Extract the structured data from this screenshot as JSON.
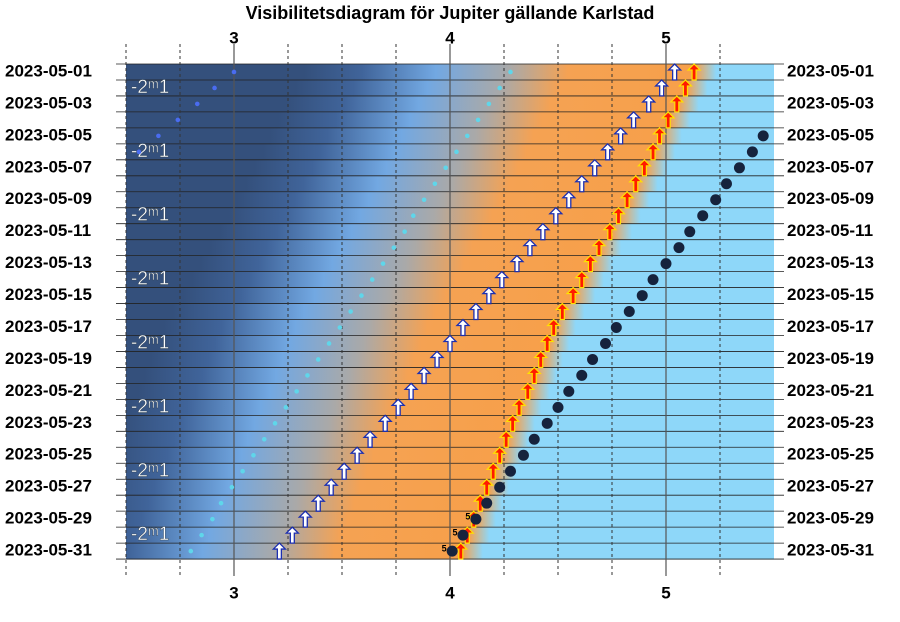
{
  "chart_data": {
    "type": "visibility",
    "title": "Visibilitetsdiagram för Jupiter gällande Karlstad",
    "categories": [
      "2023-05-01",
      null,
      "2023-05-03",
      null,
      "2023-05-05",
      null,
      "2023-05-07",
      null,
      "2023-05-09",
      null,
      "2023-05-11",
      null,
      "2023-05-13",
      null,
      "2023-05-15",
      null,
      "2023-05-17",
      null,
      "2023-05-19",
      null,
      "2023-05-21",
      null,
      "2023-05-23",
      null,
      "2023-05-25",
      null,
      "2023-05-27",
      null,
      "2023-05-29",
      null,
      "2023-05-31"
    ],
    "xlim": [
      2.5,
      5.5
    ],
    "xticks": [
      3,
      4,
      5
    ],
    "xticks_minor": [
      2.5,
      2.75,
      3.25,
      3.5,
      3.75,
      4.25,
      4.5,
      4.75,
      5.25
    ],
    "series": [
      {
        "marker": "dot-blue",
        "color": "#4a6cf0",
        "values": [
          3.0,
          2.91,
          2.83,
          2.74,
          2.65,
          2.56,
          null,
          null,
          null,
          null,
          null,
          null,
          null,
          null,
          null,
          null,
          null,
          null,
          null,
          null,
          null,
          null,
          null,
          null,
          null,
          null,
          null,
          null,
          null,
          null,
          null
        ]
      },
      {
        "marker": "dot-cyan",
        "color": "#5fd6ea",
        "values": [
          4.28,
          4.23,
          4.18,
          4.13,
          4.08,
          4.03,
          3.98,
          3.93,
          3.88,
          3.83,
          3.79,
          3.74,
          3.69,
          3.64,
          3.59,
          3.54,
          3.49,
          3.44,
          3.39,
          3.34,
          3.29,
          3.24,
          3.19,
          3.14,
          3.09,
          3.04,
          2.99,
          2.94,
          2.9,
          2.85,
          2.8
        ]
      },
      {
        "marker": "arrow-white",
        "color": "#ffffff",
        "values": [
          5.04,
          4.98,
          4.92,
          4.85,
          4.79,
          4.73,
          4.67,
          4.61,
          4.55,
          4.49,
          4.43,
          4.37,
          4.31,
          4.24,
          4.18,
          4.12,
          4.06,
          4.0,
          3.94,
          3.88,
          3.82,
          3.76,
          3.7,
          3.63,
          3.57,
          3.51,
          3.45,
          3.39,
          3.33,
          3.27,
          3.21
        ]
      },
      {
        "marker": "arrow-red",
        "color": "#ff1a00",
        "values": [
          5.13,
          5.09,
          5.05,
          5.01,
          4.97,
          4.94,
          4.9,
          4.86,
          4.82,
          4.78,
          4.74,
          4.69,
          4.65,
          4.61,
          4.57,
          4.52,
          4.48,
          4.45,
          4.42,
          4.39,
          4.36,
          4.32,
          4.29,
          4.26,
          4.23,
          4.2,
          4.17,
          4.14,
          4.11,
          4.08,
          4.05
        ]
      },
      {
        "marker": "dot-dark",
        "color": "#16233d",
        "values": [
          null,
          null,
          null,
          null,
          5.45,
          5.4,
          5.34,
          5.28,
          5.23,
          5.17,
          5.11,
          5.06,
          5.0,
          4.94,
          4.89,
          4.83,
          4.77,
          4.72,
          4.66,
          4.61,
          4.55,
          4.5,
          4.45,
          4.39,
          4.34,
          4.28,
          4.23,
          4.17,
          4.12,
          4.06,
          4.01
        ]
      }
    ],
    "magnitude_labels": [
      null,
      "-2ᵐ1",
      null,
      null,
      null,
      "-2ᵐ1",
      null,
      null,
      null,
      "-2ᵐ1",
      null,
      null,
      null,
      "-2ᵐ1",
      null,
      null,
      null,
      "-2ᵐ1",
      null,
      null,
      null,
      "-2ᵐ1",
      null,
      null,
      null,
      "-2ᵐ1",
      null,
      null,
      null,
      "-2ᵐ1",
      null
    ],
    "point_labels": [
      null,
      null,
      null,
      null,
      null,
      null,
      null,
      null,
      null,
      null,
      null,
      null,
      null,
      null,
      null,
      null,
      null,
      null,
      null,
      null,
      null,
      null,
      null,
      null,
      null,
      null,
      null,
      null,
      "5",
      "5",
      "5"
    ]
  }
}
